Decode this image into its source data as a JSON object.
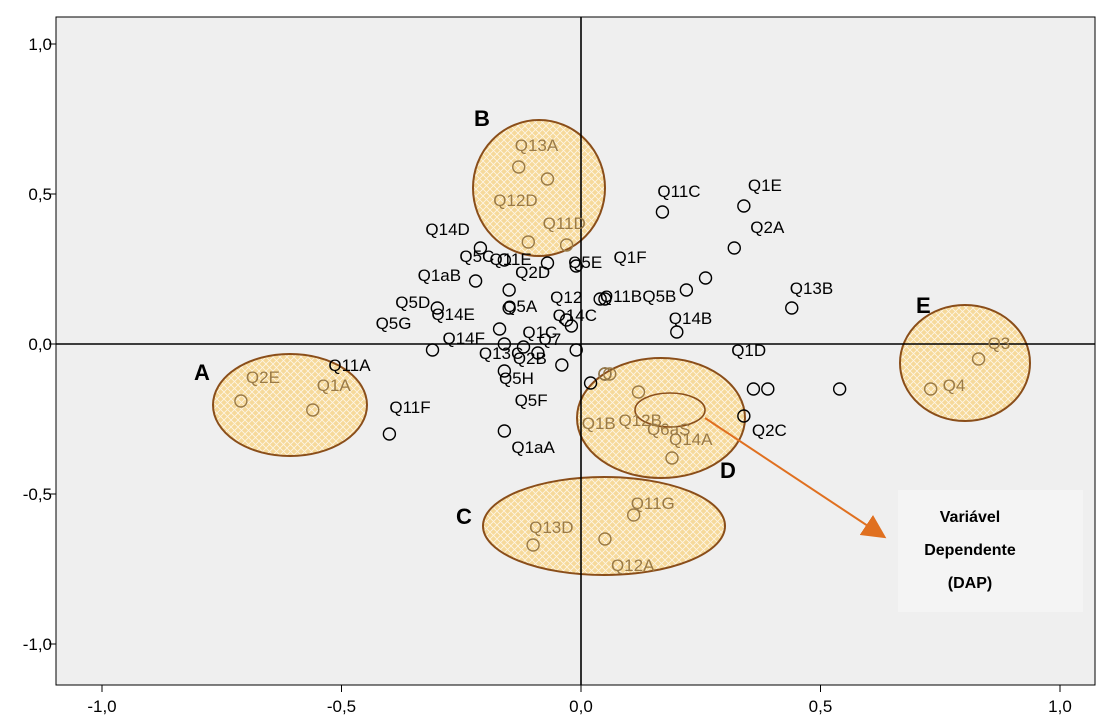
{
  "chart_data": {
    "type": "scatter",
    "xlim": [
      -1.1,
      1.09
    ],
    "ylim": [
      -1.1,
      1.1
    ],
    "x_ticks": [
      -1.0,
      -0.5,
      0.0,
      0.5,
      1.0
    ],
    "y_ticks": [
      -1.0,
      -0.5,
      0.0,
      0.5,
      1.0
    ],
    "x_tick_labels": [
      "-1,0",
      "-0,5",
      "0,0",
      "0,5",
      "1,0"
    ],
    "y_tick_labels": [
      "-1,0",
      "-0,5",
      "0,0",
      "0,5",
      "1,0"
    ],
    "grid": false,
    "reference_lines": [
      0,
      0
    ],
    "colors": {
      "plot_bg": "#efefef",
      "ellipse_fill": "#f6d99a",
      "ellipse_stroke": "#8a4e1a",
      "arrow": "#e07020",
      "cluster_label_text": "#9a7a46",
      "point_stroke": "#000000"
    },
    "points": [
      {
        "label": "Q1E",
        "x": 0.34,
        "y": 0.46
      },
      {
        "label": "Q11C",
        "x": 0.17,
        "y": 0.44
      },
      {
        "label": "Q2A",
        "x": 0.32,
        "y": 0.32
      },
      {
        "label": "Q14D",
        "x": -0.21,
        "y": 0.32
      },
      {
        "label": "Q5C",
        "x": -0.16,
        "y": 0.28
      },
      {
        "label": "Q11E",
        "x": -0.07,
        "y": 0.27
      },
      {
        "label": "Q5E",
        "x": -0.01,
        "y": 0.26
      },
      {
        "label": "Q1F",
        "x": 0.26,
        "y": 0.22
      },
      {
        "label": "Q1aB",
        "x": -0.22,
        "y": 0.21
      },
      {
        "label": "Q2D",
        "x": -0.15,
        "y": 0.18
      },
      {
        "label": "Q5B",
        "x": 0.22,
        "y": 0.18
      },
      {
        "label": "Q11B",
        "x": 0.05,
        "y": 0.15
      },
      {
        "label": "Q12",
        "x": 0.04,
        "y": 0.15
      },
      {
        "label": "Q13B",
        "x": 0.44,
        "y": 0.12
      },
      {
        "label": "Q5D",
        "x": -0.3,
        "y": 0.12
      },
      {
        "label": "Q5A",
        "x": -0.15,
        "y": 0.12
      },
      {
        "label": "Q14C",
        "x": -0.03,
        "y": 0.08
      },
      {
        "label": "Q5G",
        "x": -0.17,
        "y": 0.05
      },
      {
        "label": "Q14E",
        "x": -0.02,
        "y": 0.06
      },
      {
        "label": "Q14B",
        "x": 0.2,
        "y": 0.04
      },
      {
        "label": "Q1C",
        "x": -0.16,
        "y": 0.0
      },
      {
        "label": "Q14F",
        "x": -0.31,
        "y": -0.02
      },
      {
        "label": "Q7",
        "x": -0.12,
        "y": -0.01
      },
      {
        "label": "Q13C",
        "x": -0.09,
        "y": -0.03
      },
      {
        "label": "Q1D",
        "x": -0.01,
        "y": -0.02
      },
      {
        "label": "Q11A",
        "x": -0.16,
        "y": -0.09
      },
      {
        "label": "Q2B",
        "x": -0.04,
        "y": -0.07
      },
      {
        "label": "Q5H",
        "x": 0.05,
        "y": -0.1
      },
      {
        "label": "Q5F",
        "x": 0.02,
        "y": -0.13
      },
      {
        "label": "Q11F",
        "x": -0.4,
        "y": -0.3
      },
      {
        "label": "Q1aA",
        "x": -0.16,
        "y": -0.29
      },
      {
        "label": "Q2C",
        "x": 0.34,
        "y": -0.24
      },
      {
        "label": "",
        "x": 0.36,
        "y": -0.15
      },
      {
        "label": "",
        "x": 0.39,
        "y": -0.15
      },
      {
        "label": "",
        "x": 0.54,
        "y": -0.15
      }
    ],
    "ellipse_points": [
      {
        "label": "Q13A",
        "x": -0.13,
        "y": 0.59
      },
      {
        "label": "",
        "x": -0.07,
        "y": 0.55
      },
      {
        "label": "Q12D",
        "x": -0.11,
        "y": 0.34
      },
      {
        "label": "Q11D",
        "x": -0.03,
        "y": 0.33
      },
      {
        "label": "Q2E",
        "x": -0.71,
        "y": -0.19
      },
      {
        "label": "Q1A",
        "x": -0.56,
        "y": -0.22
      },
      {
        "label": "Q12B",
        "x": 0.12,
        "y": -0.16
      },
      {
        "label": "Q1B",
        "x": 0.06,
        "y": -0.1
      },
      {
        "label": "Q6aS",
        "x": 0.05,
        "y": -0.1
      },
      {
        "label": "Q14A",
        "x": 0.19,
        "y": -0.38
      },
      {
        "label": "Q11G",
        "x": 0.11,
        "y": -0.57
      },
      {
        "label": "Q13D",
        "x": -0.1,
        "y": -0.67
      },
      {
        "label": "Q12A",
        "x": 0.05,
        "y": -0.65
      },
      {
        "label": "Q3",
        "x": 0.83,
        "y": -0.05
      },
      {
        "label": "Q4",
        "x": 0.73,
        "y": -0.15
      }
    ],
    "clusters": [
      {
        "id": "A",
        "label": "A"
      },
      {
        "id": "B",
        "label": "B"
      },
      {
        "id": "C",
        "label": "C"
      },
      {
        "id": "D",
        "label": "D"
      },
      {
        "id": "E",
        "label": "E"
      }
    ],
    "callout": {
      "lines": [
        "Variável",
        "Dependente",
        "(DAP)"
      ],
      "points_to": "Q6aS"
    }
  }
}
